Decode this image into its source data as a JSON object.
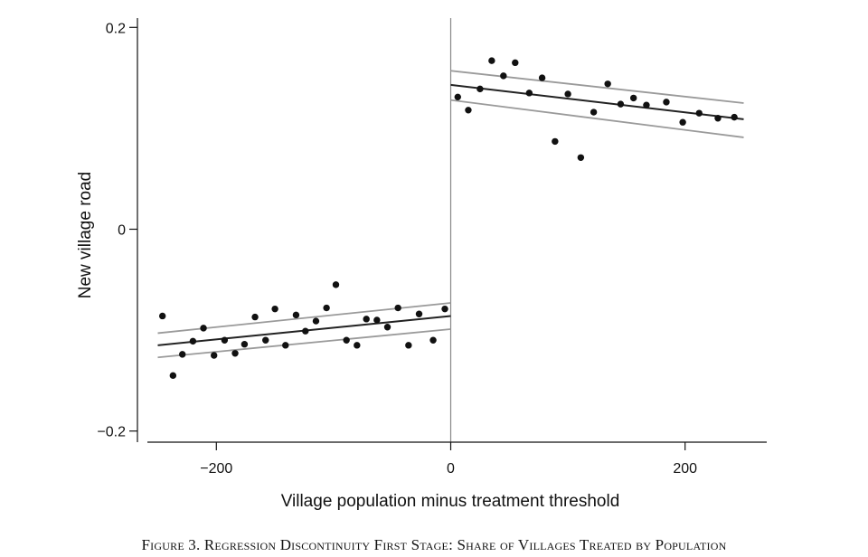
{
  "caption": "Figure 3. Regression Discontinuity First Stage: Share of Villages Treated by Population",
  "chart_data": {
    "type": "scatter",
    "xlabel": "Village population minus treatment threshold",
    "ylabel": "New village road",
    "xlim": [
      -250,
      270
    ],
    "ylim": [
      -0.21,
      0.21
    ],
    "xticks": [
      -200,
      0,
      200
    ],
    "xtick_labels": [
      "−200",
      "0",
      "200"
    ],
    "yticks": [
      0.2,
      0,
      -0.2
    ],
    "ytick_labels": [
      "0.2",
      "0",
      "−0.2"
    ],
    "threshold_x": 0,
    "grid": false,
    "colors": {
      "points": "#111111",
      "fit": "#222222",
      "ci": "#9a9a9a",
      "threshold": "#888888"
    },
    "points": [
      {
        "x": -246,
        "y": -0.086
      },
      {
        "x": -237,
        "y": -0.145
      },
      {
        "x": -229,
        "y": -0.124
      },
      {
        "x": -220,
        "y": -0.111
      },
      {
        "x": -211,
        "y": -0.098
      },
      {
        "x": -202,
        "y": -0.125
      },
      {
        "x": -193,
        "y": -0.11
      },
      {
        "x": -184,
        "y": -0.123
      },
      {
        "x": -176,
        "y": -0.114
      },
      {
        "x": -167,
        "y": -0.087
      },
      {
        "x": -158,
        "y": -0.11
      },
      {
        "x": -150,
        "y": -0.079
      },
      {
        "x": -141,
        "y": -0.115
      },
      {
        "x": -132,
        "y": -0.085
      },
      {
        "x": -124,
        "y": -0.101
      },
      {
        "x": -115,
        "y": -0.091
      },
      {
        "x": -106,
        "y": -0.078
      },
      {
        "x": -98,
        "y": -0.055
      },
      {
        "x": -89,
        "y": -0.11
      },
      {
        "x": -80,
        "y": -0.115
      },
      {
        "x": -72,
        "y": -0.089
      },
      {
        "x": -63,
        "y": -0.09
      },
      {
        "x": -54,
        "y": -0.097
      },
      {
        "x": -45,
        "y": -0.078
      },
      {
        "x": -36,
        "y": -0.115
      },
      {
        "x": -27,
        "y": -0.084
      },
      {
        "x": -15,
        "y": -0.11
      },
      {
        "x": -5,
        "y": -0.079
      },
      {
        "x": 6,
        "y": 0.131
      },
      {
        "x": 15,
        "y": 0.118
      },
      {
        "x": 25,
        "y": 0.139
      },
      {
        "x": 35,
        "y": 0.167
      },
      {
        "x": 45,
        "y": 0.152
      },
      {
        "x": 55,
        "y": 0.165
      },
      {
        "x": 67,
        "y": 0.135
      },
      {
        "x": 78,
        "y": 0.15
      },
      {
        "x": 89,
        "y": 0.087
      },
      {
        "x": 100,
        "y": 0.134
      },
      {
        "x": 111,
        "y": 0.071
      },
      {
        "x": 122,
        "y": 0.116
      },
      {
        "x": 134,
        "y": 0.144
      },
      {
        "x": 145,
        "y": 0.124
      },
      {
        "x": 156,
        "y": 0.13
      },
      {
        "x": 167,
        "y": 0.123
      },
      {
        "x": 184,
        "y": 0.126
      },
      {
        "x": 198,
        "y": 0.106
      },
      {
        "x": 212,
        "y": 0.115
      },
      {
        "x": 228,
        "y": 0.11
      },
      {
        "x": 242,
        "y": 0.111
      }
    ],
    "fit_segments": [
      {
        "side": "left",
        "x": [
          -250,
          0
        ],
        "fit": [
          -0.115,
          -0.086
        ],
        "ci_upper": [
          -0.103,
          -0.073
        ],
        "ci_lower": [
          -0.127,
          -0.099
        ]
      },
      {
        "side": "right",
        "x": [
          0,
          250
        ],
        "fit": [
          0.143,
          0.109
        ],
        "ci_upper": [
          0.157,
          0.125
        ],
        "ci_lower": [
          0.128,
          0.091
        ]
      }
    ]
  }
}
